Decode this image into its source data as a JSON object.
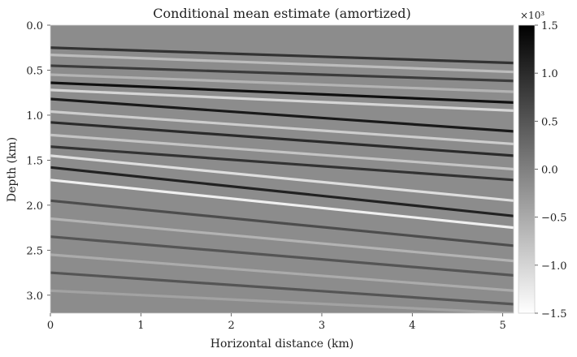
{
  "chart_data": {
    "type": "heatmap",
    "title": "Conditional mean estimate (amortized)",
    "xlabel": "Horizontal distance (km)",
    "ylabel": "Depth (km)",
    "xlim": [
      0,
      5.12
    ],
    "ylim": [
      3.2,
      0.0
    ],
    "x_ticks": [
      0,
      1,
      2,
      3,
      4,
      5
    ],
    "y_ticks": [
      0.0,
      0.5,
      1.0,
      1.5,
      2.0,
      2.5,
      3.0
    ],
    "y_tick_labels": [
      "0.0",
      "0.5",
      "1.0",
      "1.5",
      "2.0",
      "2.5",
      "3.0"
    ],
    "grid": false,
    "colormap": "gray_r",
    "colorbar": {
      "min": -1.5,
      "max": 1.5,
      "ticks": [
        1.5,
        1.0,
        0.5,
        0.0,
        -0.5,
        -1.0,
        -1.5
      ],
      "tick_labels": [
        "1.5",
        "1.0",
        "0.5",
        "0.0",
        "−0.5",
        "−1.0",
        "−1.5"
      ],
      "scale_label": "×10³"
    },
    "reflectors_depth_km": [
      {
        "x": [
          0,
          5.12
        ],
        "y": [
          0.25,
          0.42
        ],
        "amp": 0.9
      },
      {
        "x": [
          0,
          5.12
        ],
        "y": [
          0.33,
          0.52
        ],
        "amp": -0.7
      },
      {
        "x": [
          0,
          5.12
        ],
        "y": [
          0.45,
          0.62
        ],
        "amp": 0.8
      },
      {
        "x": [
          0,
          5.12
        ],
        "y": [
          0.55,
          0.74
        ],
        "amp": -0.6
      },
      {
        "x": [
          0,
          5.12
        ],
        "y": [
          0.64,
          0.86
        ],
        "amp": 1.3
      },
      {
        "x": [
          0,
          5.12
        ],
        "y": [
          0.72,
          0.95
        ],
        "amp": -1.0
      },
      {
        "x": [
          0,
          5.12
        ],
        "y": [
          0.82,
          1.18
        ],
        "amp": 1.2
      },
      {
        "x": [
          0,
          5.12
        ],
        "y": [
          0.96,
          1.32
        ],
        "amp": -0.9
      },
      {
        "x": [
          0,
          5.12
        ],
        "y": [
          1.08,
          1.45
        ],
        "amp": 1.0
      },
      {
        "x": [
          0,
          5.12
        ],
        "y": [
          1.22,
          1.6
        ],
        "amp": -0.8
      },
      {
        "x": [
          0,
          5.12
        ],
        "y": [
          1.35,
          1.72
        ],
        "amp": 0.9
      },
      {
        "x": [
          0,
          5.12
        ],
        "y": [
          1.45,
          1.95
        ],
        "amp": -1.1
      },
      {
        "x": [
          0,
          5.12
        ],
        "y": [
          1.58,
          2.12
        ],
        "amp": 1.1
      },
      {
        "x": [
          0,
          5.12
        ],
        "y": [
          1.72,
          2.25
        ],
        "amp": -1.3
      },
      {
        "x": [
          0,
          5.12
        ],
        "y": [
          1.95,
          2.45
        ],
        "amp": 0.6
      },
      {
        "x": [
          0,
          5.12
        ],
        "y": [
          2.15,
          2.62
        ],
        "amp": -0.6
      },
      {
        "x": [
          0,
          5.12
        ],
        "y": [
          2.35,
          2.78
        ],
        "amp": 0.5
      },
      {
        "x": [
          0,
          5.12
        ],
        "y": [
          2.55,
          2.95
        ],
        "amp": -0.5
      },
      {
        "x": [
          0,
          5.12
        ],
        "y": [
          2.75,
          3.1
        ],
        "amp": 0.5
      },
      {
        "x": [
          0,
          5.12
        ],
        "y": [
          2.95,
          3.2
        ],
        "amp": -0.4
      }
    ],
    "colors": {
      "background": "#8c8c8c",
      "axis_text": "#222222"
    }
  }
}
